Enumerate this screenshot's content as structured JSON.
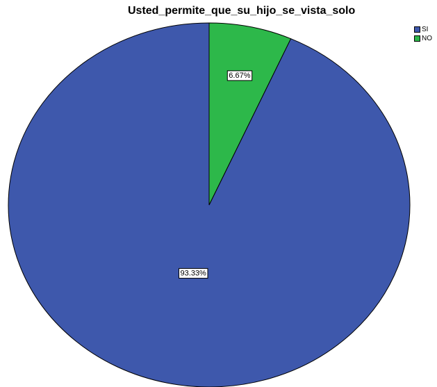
{
  "chart_data": {
    "type": "pie",
    "title": "Usted_permite_que_su_hijo_se_vista_solo",
    "categories": [
      "SI",
      "NO"
    ],
    "values": [
      93.33,
      6.67
    ],
    "labels": [
      "93.33%",
      "6.67%"
    ],
    "colors": [
      "#3e58ac",
      "#2db84a"
    ],
    "legend_position": "top-right",
    "start_angle": "12 o'clock",
    "direction": "counterclockwise"
  }
}
